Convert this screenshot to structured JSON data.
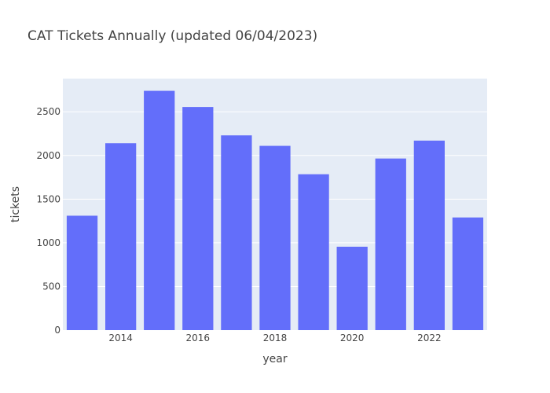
{
  "chart_data": {
    "type": "bar",
    "title": "CAT Tickets Annually (updated 06/04/2023)",
    "xlabel": "year",
    "ylabel": "tickets",
    "categories": [
      2013,
      2014,
      2015,
      2016,
      2017,
      2018,
      2019,
      2020,
      2021,
      2022,
      2023
    ],
    "values": [
      1310,
      2140,
      2740,
      2555,
      2230,
      2110,
      1785,
      955,
      1965,
      2170,
      1290
    ],
    "ylim": [
      0,
      2880
    ],
    "xlim": [
      2012.5,
      2023.5
    ],
    "yticks": [
      0,
      500,
      1000,
      1500,
      2000,
      2500
    ],
    "xticks": [
      2014,
      2016,
      2018,
      2020,
      2022
    ],
    "ytick_labels": [
      "0",
      "500",
      "1000",
      "1500",
      "2000",
      "2500"
    ],
    "xtick_labels": [
      "2014",
      "2016",
      "2018",
      "2020",
      "2022"
    ],
    "grid": true,
    "legend": "none",
    "colors": {
      "bar": "#636efa",
      "plot_background": "#e5ecf6",
      "grid": "#ffffff",
      "text": "#444444"
    }
  }
}
